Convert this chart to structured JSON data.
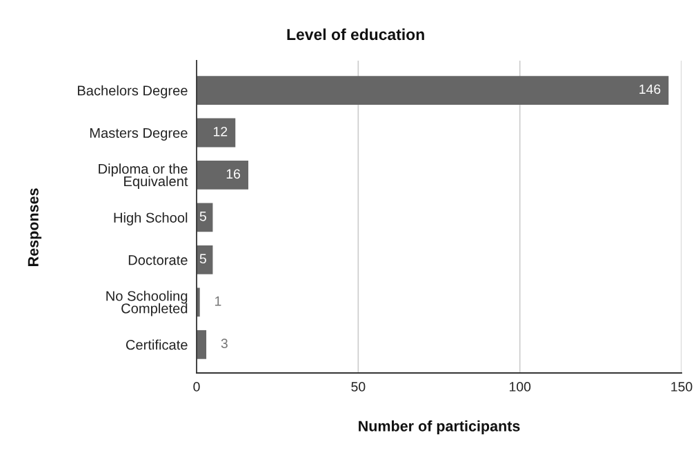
{
  "chart_data": {
    "type": "bar",
    "orientation": "horizontal",
    "title": "Level of education",
    "xlabel": "Number of participants",
    "ylabel": "Responses",
    "categories": [
      "Bachelors Degree",
      "Masters Degree",
      "Diploma or the Equivalent",
      "High School",
      "Doctorate",
      "No Schooling Completed",
      "Certificate"
    ],
    "values": [
      146,
      12,
      16,
      5,
      5,
      1,
      3
    ],
    "color": "#666666",
    "xlim": [
      0,
      150
    ],
    "xticks": [
      0,
      50,
      100,
      150
    ],
    "grid": "x",
    "data_labels": true
  }
}
